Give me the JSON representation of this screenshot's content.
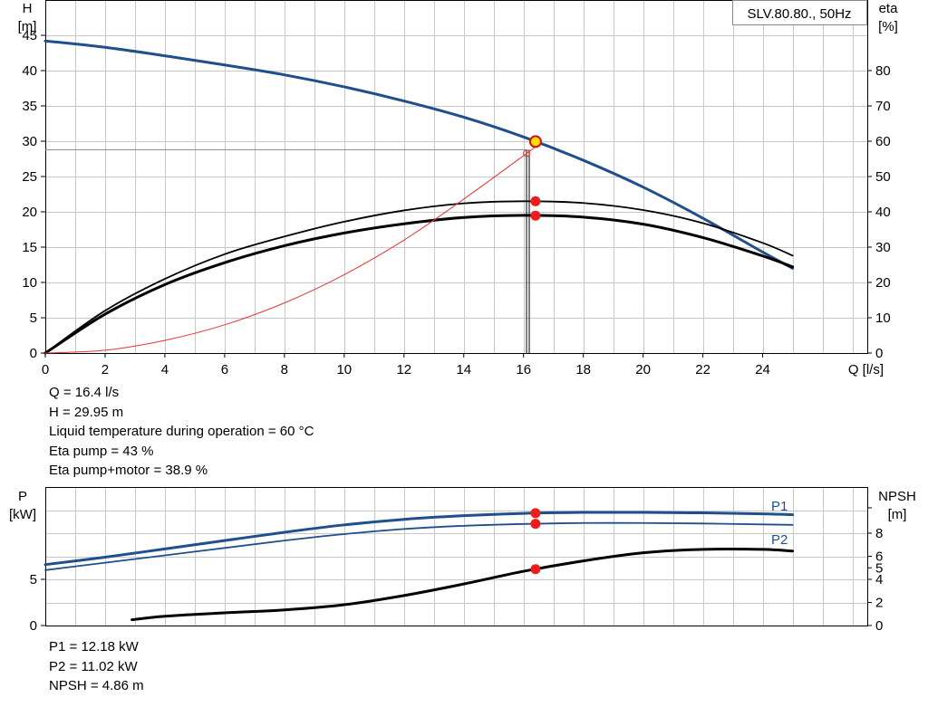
{
  "chart_data": [
    {
      "type": "line",
      "title": "SLV.80.80., 50Hz",
      "xlabel": "Q [l/s]",
      "ylabel": [
        "H",
        "[m]"
      ],
      "y2label": [
        "eta",
        "[%]"
      ],
      "xlim": [
        0,
        27.5
      ],
      "ylim": [
        0,
        50
      ],
      "y2lim": [
        0,
        100
      ],
      "x_ticks": [
        0,
        2,
        4,
        6,
        8,
        10,
        12,
        14,
        16,
        18,
        20,
        22,
        24
      ],
      "y_ticks": [
        0,
        5,
        10,
        15,
        20,
        25,
        30,
        35,
        40,
        45
      ],
      "y2_ticks": [
        0,
        10,
        20,
        30,
        40,
        50,
        60,
        70,
        80
      ],
      "grid": true,
      "series": [
        {
          "axis": "left",
          "color": "#1f4f8c",
          "x": [
            0,
            2,
            4,
            6,
            8,
            10,
            12,
            14,
            16,
            18,
            20,
            22,
            24,
            25
          ],
          "y": [
            44.2,
            43.3,
            42.1,
            40.8,
            39.4,
            37.7,
            35.7,
            33.4,
            30.6,
            27.3,
            23.5,
            19.1,
            14.3,
            12.0
          ]
        },
        {
          "axis": "right",
          "color": "#000000",
          "x": [
            0,
            2,
            4,
            6,
            8,
            10,
            12,
            14,
            16,
            18,
            20,
            22,
            24,
            25
          ],
          "y": [
            0,
            12.0,
            21.0,
            28.0,
            33.0,
            37.2,
            40.4,
            42.4,
            43.0,
            42.5,
            40.5,
            36.8,
            31.2,
            27.6
          ]
        },
        {
          "axis": "right",
          "color": "#000000",
          "x": [
            0,
            2,
            4,
            6,
            8,
            10,
            12,
            14,
            16,
            18,
            20,
            22,
            24,
            25
          ],
          "y": [
            0,
            11.0,
            19.4,
            25.6,
            30.4,
            34.0,
            36.6,
            38.4,
            39.0,
            38.5,
            36.5,
            32.7,
            27.5,
            24.4
          ]
        },
        {
          "axis": "left",
          "color": "#ee3333",
          "x": [
            0,
            2,
            4,
            6,
            8,
            10,
            12,
            14,
            16.4
          ],
          "y": [
            0,
            0.4,
            1.8,
            4.0,
            7.1,
            11.1,
            16.0,
            21.8,
            29.2
          ]
        }
      ],
      "duty_point": {
        "x": 16.4,
        "h": 29.95,
        "eta1": 43,
        "eta2": 38.9,
        "op_h": 28.8,
        "op_q": 16.1
      }
    },
    {
      "type": "line",
      "ylabel": [
        "P",
        "[kW]"
      ],
      "y2label": [
        "NPSH",
        "[m]"
      ],
      "xlim": [
        0,
        27.5
      ],
      "ylim": [
        0,
        15
      ],
      "y_ticks": [
        0,
        5
      ],
      "y2lim": [
        0,
        12
      ],
      "y2_ticks": [
        0,
        2,
        4,
        5,
        6,
        8
      ],
      "grid": true,
      "series": [
        {
          "name": "P1",
          "axis": "left",
          "color": "#1f4f8c",
          "x": [
            0,
            2,
            4,
            6,
            8,
            10,
            12,
            14,
            16,
            18,
            20,
            22,
            24,
            25
          ],
          "y": [
            6.6,
            7.4,
            8.3,
            9.2,
            10.1,
            10.9,
            11.5,
            11.9,
            12.15,
            12.25,
            12.25,
            12.2,
            12.1,
            12.0
          ]
        },
        {
          "name": "P2",
          "axis": "left",
          "color": "#1f4f8c",
          "x": [
            0,
            2,
            4,
            6,
            8,
            10,
            12,
            14,
            16,
            18,
            20,
            22,
            24,
            25
          ],
          "y": [
            6.0,
            6.8,
            7.6,
            8.4,
            9.2,
            9.9,
            10.45,
            10.8,
            11.0,
            11.1,
            11.1,
            11.05,
            10.95,
            10.9
          ]
        },
        {
          "name": "NPSH",
          "axis": "right",
          "color": "#000000",
          "x": [
            2.9,
            4,
            6,
            8,
            10,
            12,
            14,
            16,
            18,
            20,
            22,
            24,
            25
          ],
          "y": [
            0.5,
            0.8,
            1.1,
            1.35,
            1.8,
            2.6,
            3.6,
            4.7,
            5.6,
            6.3,
            6.6,
            6.6,
            6.45
          ]
        }
      ],
      "duty_point": {
        "x": 16.4,
        "p1": 12.18,
        "p2": 11.02,
        "npsh": 4.86
      }
    }
  ],
  "info_top": [
    "Q = 16.4 l/s",
    "H = 29.95 m",
    "Liquid temperature during operation = 60 °C",
    "Eta pump = 43 %",
    "Eta pump+motor = 38.9 %"
  ],
  "info_bottom": [
    "P1 = 12.18 kW",
    "P2 = 11.02 kW",
    "NPSH = 4.86 m"
  ]
}
